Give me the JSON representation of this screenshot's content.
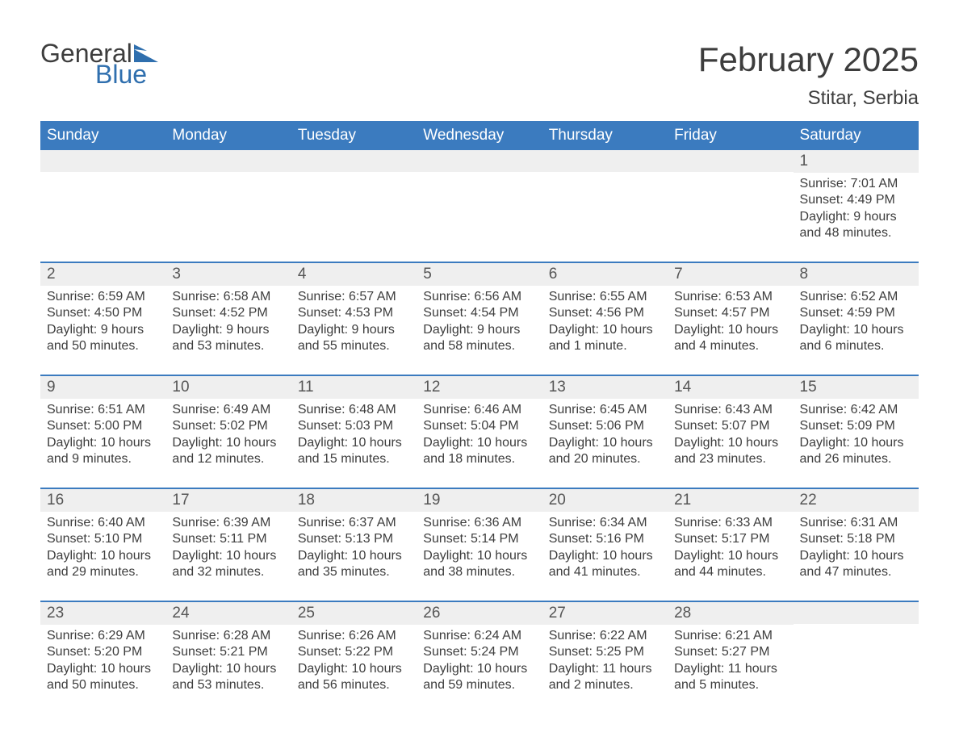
{
  "colors": {
    "header_bg": "#3b7bbf",
    "header_text": "#ffffff",
    "daynum_bg": "#efefef",
    "text": "#3d3d3d",
    "week_border": "#3b7bbf",
    "logo_gray": "#3d3d3d",
    "logo_blue": "#2f6fae"
  },
  "logo": {
    "part1": "General",
    "part2": "Blue"
  },
  "title": "February 2025",
  "location": "Stitar, Serbia",
  "day_headers": [
    "Sunday",
    "Monday",
    "Tuesday",
    "Wednesday",
    "Thursday",
    "Friday",
    "Saturday"
  ],
  "weeks": [
    [
      {
        "n": "",
        "lines": []
      },
      {
        "n": "",
        "lines": []
      },
      {
        "n": "",
        "lines": []
      },
      {
        "n": "",
        "lines": []
      },
      {
        "n": "",
        "lines": []
      },
      {
        "n": "",
        "lines": []
      },
      {
        "n": "1",
        "lines": [
          "Sunrise: 7:01 AM",
          "Sunset: 4:49 PM",
          "Daylight: 9 hours and 48 minutes."
        ]
      }
    ],
    [
      {
        "n": "2",
        "lines": [
          "Sunrise: 6:59 AM",
          "Sunset: 4:50 PM",
          "Daylight: 9 hours and 50 minutes."
        ]
      },
      {
        "n": "3",
        "lines": [
          "Sunrise: 6:58 AM",
          "Sunset: 4:52 PM",
          "Daylight: 9 hours and 53 minutes."
        ]
      },
      {
        "n": "4",
        "lines": [
          "Sunrise: 6:57 AM",
          "Sunset: 4:53 PM",
          "Daylight: 9 hours and 55 minutes."
        ]
      },
      {
        "n": "5",
        "lines": [
          "Sunrise: 6:56 AM",
          "Sunset: 4:54 PM",
          "Daylight: 9 hours and 58 minutes."
        ]
      },
      {
        "n": "6",
        "lines": [
          "Sunrise: 6:55 AM",
          "Sunset: 4:56 PM",
          "Daylight: 10 hours and 1 minute."
        ]
      },
      {
        "n": "7",
        "lines": [
          "Sunrise: 6:53 AM",
          "Sunset: 4:57 PM",
          "Daylight: 10 hours and 4 minutes."
        ]
      },
      {
        "n": "8",
        "lines": [
          "Sunrise: 6:52 AM",
          "Sunset: 4:59 PM",
          "Daylight: 10 hours and 6 minutes."
        ]
      }
    ],
    [
      {
        "n": "9",
        "lines": [
          "Sunrise: 6:51 AM",
          "Sunset: 5:00 PM",
          "Daylight: 10 hours and 9 minutes."
        ]
      },
      {
        "n": "10",
        "lines": [
          "Sunrise: 6:49 AM",
          "Sunset: 5:02 PM",
          "Daylight: 10 hours and 12 minutes."
        ]
      },
      {
        "n": "11",
        "lines": [
          "Sunrise: 6:48 AM",
          "Sunset: 5:03 PM",
          "Daylight: 10 hours and 15 minutes."
        ]
      },
      {
        "n": "12",
        "lines": [
          "Sunrise: 6:46 AM",
          "Sunset: 5:04 PM",
          "Daylight: 10 hours and 18 minutes."
        ]
      },
      {
        "n": "13",
        "lines": [
          "Sunrise: 6:45 AM",
          "Sunset: 5:06 PM",
          "Daylight: 10 hours and 20 minutes."
        ]
      },
      {
        "n": "14",
        "lines": [
          "Sunrise: 6:43 AM",
          "Sunset: 5:07 PM",
          "Daylight: 10 hours and 23 minutes."
        ]
      },
      {
        "n": "15",
        "lines": [
          "Sunrise: 6:42 AM",
          "Sunset: 5:09 PM",
          "Daylight: 10 hours and 26 minutes."
        ]
      }
    ],
    [
      {
        "n": "16",
        "lines": [
          "Sunrise: 6:40 AM",
          "Sunset: 5:10 PM",
          "Daylight: 10 hours and 29 minutes."
        ]
      },
      {
        "n": "17",
        "lines": [
          "Sunrise: 6:39 AM",
          "Sunset: 5:11 PM",
          "Daylight: 10 hours and 32 minutes."
        ]
      },
      {
        "n": "18",
        "lines": [
          "Sunrise: 6:37 AM",
          "Sunset: 5:13 PM",
          "Daylight: 10 hours and 35 minutes."
        ]
      },
      {
        "n": "19",
        "lines": [
          "Sunrise: 6:36 AM",
          "Sunset: 5:14 PM",
          "Daylight: 10 hours and 38 minutes."
        ]
      },
      {
        "n": "20",
        "lines": [
          "Sunrise: 6:34 AM",
          "Sunset: 5:16 PM",
          "Daylight: 10 hours and 41 minutes."
        ]
      },
      {
        "n": "21",
        "lines": [
          "Sunrise: 6:33 AM",
          "Sunset: 5:17 PM",
          "Daylight: 10 hours and 44 minutes."
        ]
      },
      {
        "n": "22",
        "lines": [
          "Sunrise: 6:31 AM",
          "Sunset: 5:18 PM",
          "Daylight: 10 hours and 47 minutes."
        ]
      }
    ],
    [
      {
        "n": "23",
        "lines": [
          "Sunrise: 6:29 AM",
          "Sunset: 5:20 PM",
          "Daylight: 10 hours and 50 minutes."
        ]
      },
      {
        "n": "24",
        "lines": [
          "Sunrise: 6:28 AM",
          "Sunset: 5:21 PM",
          "Daylight: 10 hours and 53 minutes."
        ]
      },
      {
        "n": "25",
        "lines": [
          "Sunrise: 6:26 AM",
          "Sunset: 5:22 PM",
          "Daylight: 10 hours and 56 minutes."
        ]
      },
      {
        "n": "26",
        "lines": [
          "Sunrise: 6:24 AM",
          "Sunset: 5:24 PM",
          "Daylight: 10 hours and 59 minutes."
        ]
      },
      {
        "n": "27",
        "lines": [
          "Sunrise: 6:22 AM",
          "Sunset: 5:25 PM",
          "Daylight: 11 hours and 2 minutes."
        ]
      },
      {
        "n": "28",
        "lines": [
          "Sunrise: 6:21 AM",
          "Sunset: 5:27 PM",
          "Daylight: 11 hours and 5 minutes."
        ]
      },
      {
        "n": "",
        "lines": []
      }
    ]
  ]
}
